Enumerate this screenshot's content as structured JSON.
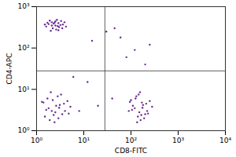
{
  "chart_data": {
    "type": "scatter",
    "x_label": "CD8-FITC",
    "y_label": "CD4-APC",
    "log": true,
    "color": "#6a2c91",
    "marker": "dot",
    "xlim": [
      1,
      10000
    ],
    "xticks": [
      {
        "value": 1,
        "label": "10⁰"
      },
      {
        "value": 10,
        "label": "10¹"
      },
      {
        "value": 100,
        "label": "10²"
      },
      {
        "value": 1000,
        "label": "10³"
      },
      {
        "value": 10000,
        "label": "10⁴"
      }
    ],
    "ylim": [
      1,
      1000
    ],
    "yticks": [
      {
        "value": 1,
        "label": "10⁰"
      },
      {
        "value": 10,
        "label": "10¹"
      },
      {
        "value": 100,
        "label": "10²"
      },
      {
        "value": 1000,
        "label": "10³"
      }
    ],
    "quadrant_gates": {
      "x": 28,
      "y": 28
    },
    "x": [
      1.8,
      2.1,
      2.5,
      2.9,
      3.3,
      2.2,
      1.6,
      2.7,
      3.6,
      2.0,
      2.4,
      3.0,
      1.9,
      2.6,
      3.9,
      2.3,
      2.8,
      1.7,
      3.2,
      2.1,
      4.2,
      2.5,
      1.5,
      3.5,
      2.9,
      30,
      60,
      120,
      200,
      15,
      80,
      45,
      250,
      1.8,
      2.5,
      3.1,
      2.2,
      1.5,
      4.0,
      2.8,
      1.9,
      3.5,
      2.6,
      1.4,
      4.5,
      2.1,
      3.3,
      2.9,
      1.7,
      5.2,
      2.4,
      3.8,
      2.0,
      1.6,
      3.0,
      2.3,
      4.8,
      1.3,
      120,
      150,
      180,
      100,
      140,
      220,
      130,
      160,
      200,
      110,
      170,
      250,
      90,
      145,
      190,
      125,
      280,
      135,
      210,
      155,
      105,
      175,
      165,
      230,
      95,
      8,
      20,
      40,
      12,
      6
    ],
    "values": [
      380,
      420,
      350,
      400,
      450,
      300,
      330,
      480,
      370,
      260,
      410,
      320,
      460,
      280,
      420,
      390,
      340,
      410,
      360,
      350,
      330,
      440,
      370,
      300,
      270,
      250,
      180,
      90,
      40,
      150,
      60,
      300,
      120,
      3.5,
      2.8,
      4.2,
      5.5,
      2.2,
      3.0,
      6.8,
      1.8,
      2.5,
      4.0,
      4.8,
      5.2,
      3.0,
      7.5,
      2.0,
      6.0,
      3.8,
      1.6,
      4.5,
      8.5,
      3.2,
      3.6,
      2.4,
      2.6,
      5.0,
      3.5,
      2.8,
      4.2,
      5.5,
      2.2,
      3.0,
      6.8,
      1.8,
      2.5,
      4.0,
      4.8,
      5.2,
      3.0,
      7.5,
      2.0,
      6.0,
      3.8,
      1.6,
      4.5,
      8.5,
      3.2,
      3.6,
      2.4,
      2.6,
      5.0,
      3,
      4,
      6,
      15,
      20
    ]
  }
}
